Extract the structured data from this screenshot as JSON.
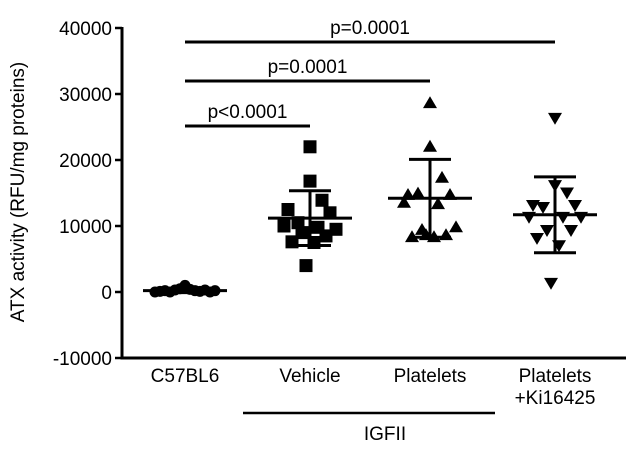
{
  "chart_data": {
    "type": "scatter",
    "ylabel": "ATX activity (RFU/mg proteins)",
    "ylim": [
      -10000,
      40000
    ],
    "yticks": [
      "-10000",
      "0",
      "10000",
      "20000",
      "30000",
      "40000"
    ],
    "categories": [
      "C57BL6",
      "Vehicle",
      "Platelets",
      "Platelets\n+Ki16425"
    ],
    "category_lines": [
      [
        "C57BL6"
      ],
      [
        "Vehicle"
      ],
      [
        "Platelets"
      ],
      [
        "Platelets",
        "+Ki16425"
      ]
    ],
    "group_label": "IGFII",
    "grid": false,
    "series": [
      {
        "category": "C57BL6",
        "marker": "circle",
        "values": [
          0,
          100,
          200,
          0,
          300,
          500,
          1000,
          400,
          200,
          100,
          300,
          0,
          200
        ],
        "mean": 200,
        "sd": 300
      },
      {
        "category": "Vehicle",
        "marker": "square",
        "values": [
          22000,
          16800,
          13900,
          12500,
          12000,
          10500,
          10000,
          9800,
          9500,
          9000,
          8500,
          7600,
          7500,
          4000
        ],
        "mean": 11200,
        "sd": 4150
      },
      {
        "category": "Platelets",
        "marker": "triangle-up",
        "values": [
          28600,
          22000,
          17300,
          14700,
          14700,
          14900,
          13500,
          13300,
          9800,
          9400,
          8600,
          8300,
          8300,
          8600
        ],
        "mean": 14200,
        "sd": 5900
      },
      {
        "category": "Platelets\n+Ki16425",
        "marker": "triangle-down",
        "values": [
          26400,
          16200,
          15100,
          13200,
          13200,
          12900,
          11400,
          11400,
          11400,
          9400,
          9400,
          8200,
          7100,
          1400
        ],
        "mean": 11700,
        "sd": 5750
      }
    ],
    "annotations": [
      {
        "text": "p=0.0001",
        "from": "C57BL6",
        "to": "Platelets\n+Ki16425"
      },
      {
        "text": "p=0.0001",
        "from": "C57BL6",
        "to": "Platelets"
      },
      {
        "text": "p<0.0001",
        "from": "C57BL6",
        "to": "Vehicle"
      }
    ]
  }
}
